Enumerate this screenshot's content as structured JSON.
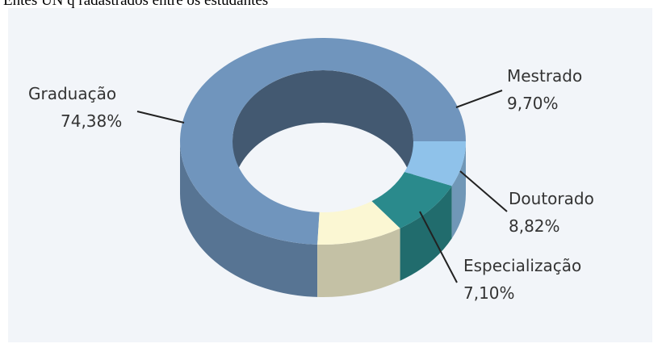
{
  "page_title": "Entes UN q radastrados entre os estudantes",
  "chart_data": {
    "type": "pie",
    "variant": "3d-donut",
    "title": "",
    "slices": [
      {
        "label": "Graduação",
        "value": 74.38,
        "display": "74,38%",
        "color": "#7095bd"
      },
      {
        "label": "Mestrado",
        "value": 9.7,
        "display": "9,70%",
        "color": "#fbf7d3"
      },
      {
        "label": "Doutorado",
        "value": 8.82,
        "display": "8,82%",
        "color": "#2a8a8c"
      },
      {
        "label": "Especialização",
        "value": 7.1,
        "display": "7,10%",
        "color": "#8fc2ea"
      }
    ],
    "background": "#f2f5f9"
  }
}
